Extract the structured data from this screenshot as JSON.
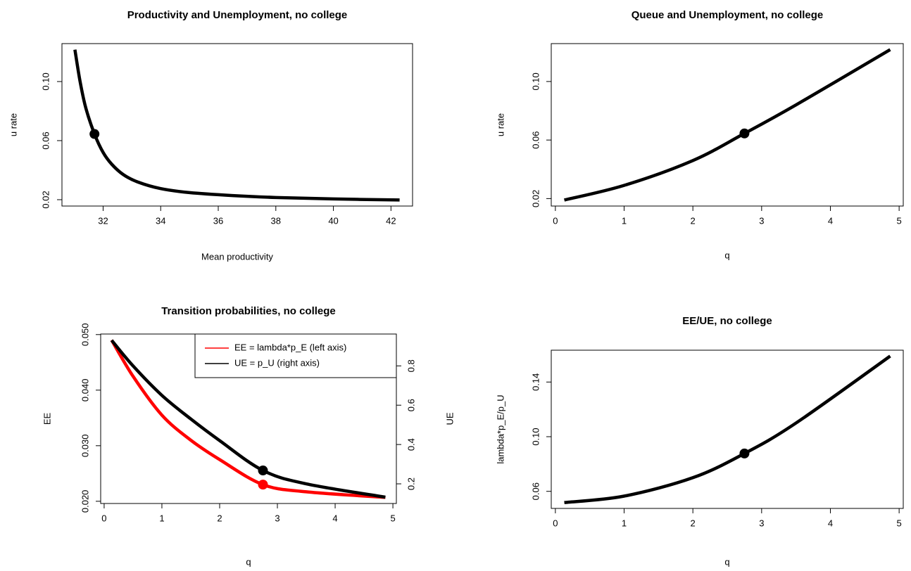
{
  "chart_data": [
    {
      "type": "line",
      "title": "Productivity and Unemployment, no college",
      "xlabel": "Mean productivity",
      "ylabel": "u rate",
      "xlim": [
        30.57,
        42.75
      ],
      "ylim": [
        0.0157,
        0.1257
      ],
      "xticks": [
        32,
        34,
        36,
        38,
        40,
        42
      ],
      "yticks": [
        0.02,
        0.06,
        {
          "value": 0.1,
          "label": "0.10"
        }
      ],
      "series": [
        {
          "color": "#000000",
          "x": [
            31.02,
            31.2,
            31.4,
            31.7,
            32,
            32.3,
            32.7,
            33.2,
            34,
            35,
            36.5,
            38,
            40,
            42.3
          ],
          "values": [
            0.1216,
            0.1,
            0.082,
            0.0645,
            0.052,
            0.044,
            0.037,
            0.032,
            0.0275,
            0.0248,
            0.0228,
            0.0215,
            0.0205,
            0.0198
          ],
          "marker": [
            31.7,
            0.0645
          ]
        }
      ]
    },
    {
      "type": "line",
      "title": "Queue and Unemployment, no college",
      "xlabel": "q",
      "ylabel": "u rate",
      "xlim": [
        -0.06,
        5.06
      ],
      "ylim": [
        0.0149,
        0.1259
      ],
      "xticks": [
        0,
        1,
        2,
        3,
        4,
        5
      ],
      "yticks": [
        0.02,
        0.06,
        {
          "value": 0.1,
          "label": "0.10"
        }
      ],
      "series": [
        {
          "color": "#000000",
          "x": [
            0.13,
            1,
            2,
            2.75,
            3.5,
            4.87
          ],
          "values": [
            0.019,
            0.029,
            0.046,
            0.0645,
            0.084,
            0.1218
          ],
          "marker": [
            2.75,
            0.0645
          ]
        }
      ]
    },
    {
      "type": "line",
      "title": "Transition probabilities, no college",
      "xlabel": "q",
      "ylabel": "EE",
      "y2label": "UE",
      "xlim": [
        -0.06,
        5.06
      ],
      "ylim": [
        0.0196,
        0.0501
      ],
      "y2lim": [
        0.1,
        0.962
      ],
      "xticks": [
        0,
        1,
        2,
        3,
        4,
        5
      ],
      "yticks": [
        {
          "value": 0.02,
          "label": "0.020"
        },
        {
          "value": 0.03,
          "label": "0.030"
        },
        {
          "value": 0.04,
          "label": "0.040"
        },
        {
          "value": 0.05,
          "label": "0.050"
        }
      ],
      "y2ticks": [
        0.2,
        0.4,
        0.6,
        0.8
      ],
      "legend": "top-right",
      "series": [
        {
          "name": "EE = lambda*p_E (left axis)",
          "color": "#ff0000",
          "x": [
            0.13,
            0.5,
            1,
            1.5,
            2,
            2.75,
            3.5,
            4.87
          ],
          "values": [
            0.049,
            0.0425,
            0.0355,
            0.031,
            0.0275,
            0.023,
            0.0217,
            0.0207
          ],
          "marker": [
            2.75,
            0.023
          ]
        },
        {
          "name": "UE = p_U (right axis)",
          "color": "#000000",
          "axis": "y2",
          "x": [
            0.13,
            0.5,
            1,
            1.5,
            2,
            2.75,
            3.5,
            4.87
          ],
          "values": [
            0.93,
            0.8,
            0.65,
            0.53,
            0.42,
            0.268,
            0.2,
            0.132
          ],
          "marker": [
            2.75,
            0.268
          ]
        }
      ]
    },
    {
      "type": "line",
      "title": "EE/UE, no college",
      "xlabel": "q",
      "ylabel": "lambda*p_E/p_U",
      "xlim": [
        -0.06,
        5.06
      ],
      "ylim": [
        0.0475,
        0.1633
      ],
      "xticks": [
        0,
        1,
        2,
        3,
        4,
        5
      ],
      "yticks": [
        0.06,
        {
          "value": 0.1,
          "label": "0.10"
        },
        0.14
      ],
      "series": [
        {
          "color": "#000000",
          "x": [
            0.13,
            1,
            2,
            2.75,
            3.5,
            4.87
          ],
          "values": [
            0.0518,
            0.0565,
            0.07,
            0.0877,
            0.11,
            0.159
          ],
          "marker": [
            2.75,
            0.0877
          ]
        }
      ]
    }
  ]
}
